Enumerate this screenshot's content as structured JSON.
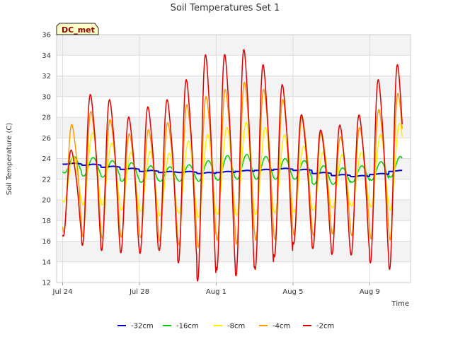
{
  "chart_data": {
    "type": "line",
    "title": "Soil Temperatures Set 1",
    "xlabel": "Time",
    "ylabel": "Soil Temperature (C)",
    "badge": "DC_met",
    "x_start": "Jul 24",
    "x_end": "Aug 10",
    "xticks": [
      "Jul 24",
      "Jul 28",
      "Aug 1",
      "Aug 5",
      "Aug 9"
    ],
    "ylim": [
      12,
      36
    ],
    "yticks": [
      12,
      14,
      16,
      18,
      20,
      22,
      24,
      26,
      28,
      30,
      32,
      34,
      36
    ],
    "grid": true,
    "legend_position": "bottom",
    "series": [
      {
        "name": "-32cm",
        "color": "#0000cc",
        "daily_mean": [
          23.5,
          23.4,
          23.2,
          23.0,
          22.8,
          22.7,
          22.7,
          22.6,
          22.7,
          22.8,
          22.9,
          23.0,
          22.9,
          22.6,
          22.4,
          22.3,
          22.5,
          22.8
        ],
        "amplitude": [
          0.05,
          0.05,
          0.05,
          0.05,
          0.05,
          0.05,
          0.05,
          0.05,
          0.05,
          0.05,
          0.05,
          0.05,
          0.05,
          0.05,
          0.05,
          0.05,
          0.05,
          0.05
        ]
      },
      {
        "name": "-16cm",
        "color": "#00cc00",
        "daily_mean": [
          23.4,
          23.2,
          23.0,
          22.7,
          22.5,
          22.5,
          22.6,
          22.8,
          23.1,
          23.2,
          23.1,
          23.0,
          22.9,
          22.4,
          22.3,
          22.5,
          22.8,
          23.2
        ],
        "amplitude": [
          0.8,
          0.9,
          0.8,
          0.9,
          0.8,
          0.7,
          0.8,
          1.0,
          1.2,
          1.2,
          1.1,
          1.0,
          0.9,
          0.9,
          0.8,
          0.8,
          0.9,
          1.0
        ]
      },
      {
        "name": "-8cm",
        "color": "#ffee00",
        "daily_mean": [
          22.0,
          23.0,
          22.5,
          21.8,
          21.8,
          21.5,
          22.2,
          22.3,
          22.8,
          23.0,
          22.8,
          22.5,
          22.0,
          21.8,
          21.8,
          22.0,
          22.8,
          23.2
        ],
        "amplitude": [
          2.2,
          3.5,
          3.0,
          2.8,
          2.9,
          3.0,
          3.5,
          4.0,
          4.2,
          4.5,
          4.2,
          3.8,
          3.2,
          2.8,
          2.6,
          2.6,
          3.5,
          4.2
        ]
      },
      {
        "name": "-4cm",
        "color": "#ff9900",
        "daily_mean": [
          22.5,
          23.0,
          22.5,
          21.8,
          22.0,
          22.2,
          23.0,
          23.3,
          24.0,
          24.2,
          24.0,
          23.5,
          22.8,
          22.0,
          21.8,
          22.2,
          23.0,
          23.8
        ],
        "amplitude": [
          5.0,
          5.8,
          5.5,
          4.8,
          5.0,
          5.5,
          6.5,
          7.0,
          7.0,
          7.5,
          7.0,
          6.5,
          5.5,
          4.8,
          4.5,
          5.0,
          6.0,
          6.8
        ]
      },
      {
        "name": "-2cm",
        "color": "#dd0000",
        "daily_mean": [
          21.0,
          23.5,
          23.0,
          22.0,
          22.5,
          23.0,
          23.5,
          24.0,
          24.5,
          24.5,
          24.0,
          23.5,
          22.5,
          21.5,
          21.5,
          22.0,
          23.5,
          24.0
        ],
        "amplitude": [
          4.0,
          7.0,
          7.0,
          6.3,
          6.8,
          7.0,
          8.5,
          10.5,
          10.0,
          10.5,
          9.5,
          8.0,
          6.0,
          5.5,
          6.0,
          6.5,
          8.5,
          9.5
        ]
      }
    ]
  }
}
